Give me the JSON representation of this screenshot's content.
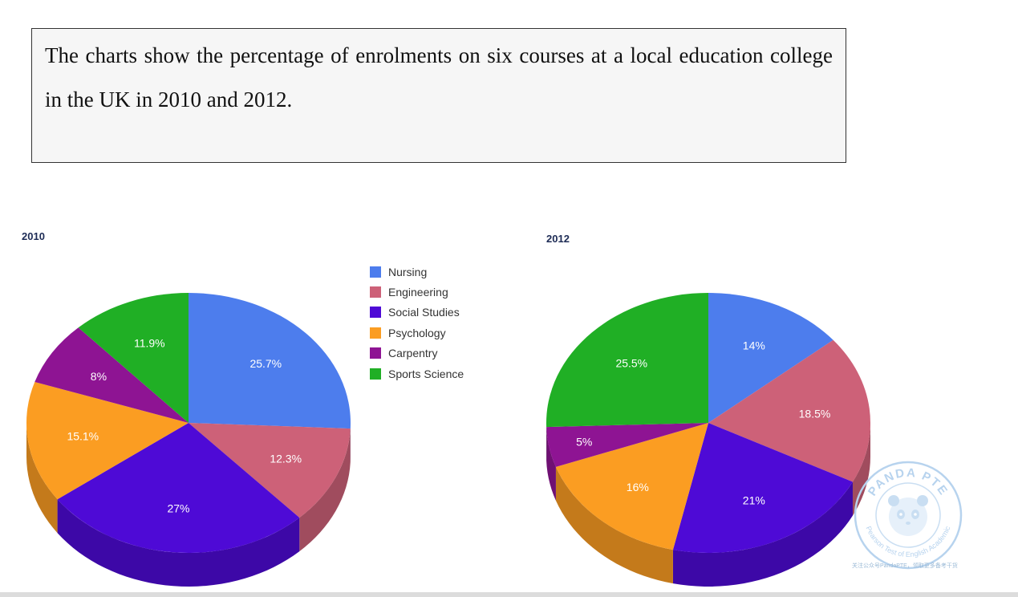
{
  "prompt": {
    "text": "The charts show the percentage of enrolments on six courses at a local education college in the UK in 2010 and 2012."
  },
  "colors": {
    "Nursing": "#4d7ded",
    "Engineering": "#cd6178",
    "Social Studies": "#4e0ad6",
    "Psychology": "#fb9d22",
    "Carpentry": "#8e1493",
    "Sports Science": "#20af25"
  },
  "chart_data": [
    {
      "type": "pie",
      "title": "2010",
      "labels": [
        "Nursing",
        "Engineering",
        "Social Studies",
        "Psychology",
        "Carpentry",
        "Sports Science"
      ],
      "values": [
        25.7,
        12.3,
        27,
        15.1,
        8,
        11.9
      ],
      "value_labels": [
        "25.7%",
        "12.3%",
        "27%",
        "15.1%",
        "8%",
        "11.9%"
      ],
      "style": "3d",
      "legend": "right"
    },
    {
      "type": "pie",
      "title": "2012",
      "labels": [
        "Nursing",
        "Engineering",
        "Social Studies",
        "Psychology",
        "Carpentry",
        "Sports Science"
      ],
      "values": [
        14,
        18.5,
        21,
        16,
        5,
        25.5
      ],
      "value_labels": [
        "14%",
        "18.5%",
        "21%",
        "16%",
        "5%",
        "25.5%"
      ],
      "style": "3d"
    }
  ],
  "legend": {
    "items": [
      "Nursing",
      "Engineering",
      "Social Studies",
      "Psychology",
      "Carpentry",
      "Sports Science"
    ]
  },
  "watermark": {
    "top_text": "PANDA PTE",
    "ring_text": "Pearson Test of English Academic",
    "caption": "关注公众号PandaPTE，领取更多备考干货"
  }
}
